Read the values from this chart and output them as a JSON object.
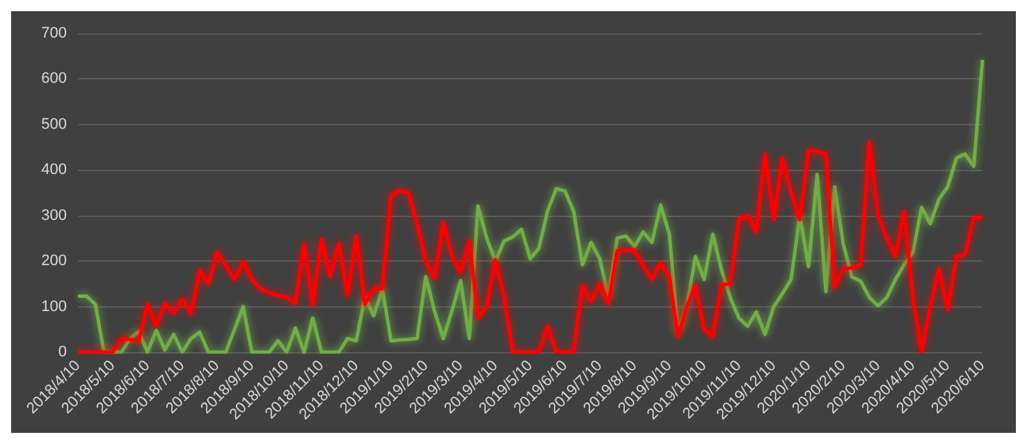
{
  "chart_data": {
    "type": "line",
    "categories": [
      "2018/4/10",
      null,
      null,
      null,
      "2018/5/10",
      null,
      null,
      null,
      "2018/6/10",
      null,
      null,
      null,
      "2018/7/10",
      null,
      null,
      null,
      "2018/8/10",
      null,
      null,
      null,
      "2018/9/10",
      null,
      null,
      null,
      "2018/10/10",
      null,
      null,
      null,
      "2018/11/10",
      null,
      null,
      null,
      "2018/12/10",
      null,
      null,
      null,
      "2019/1/10",
      null,
      null,
      null,
      "2019/2/10",
      null,
      null,
      null,
      "2019/3/10",
      null,
      null,
      null,
      "2019/4/10",
      null,
      null,
      null,
      "2019/5/10",
      null,
      null,
      null,
      "2019/6/10",
      null,
      null,
      null,
      "2019/7/10",
      null,
      null,
      null,
      "2019/8/10",
      null,
      null,
      null,
      "2019/9/10",
      null,
      null,
      null,
      "2019/10/10",
      null,
      null,
      null,
      "2019/11/10",
      null,
      null,
      null,
      "2019/12/10",
      null,
      null,
      null,
      "2020/1/10",
      null,
      null,
      null,
      "2020/2/10",
      null,
      null,
      null,
      "2020/3/10",
      null,
      null,
      null,
      "2020/4/10",
      null,
      null,
      null,
      "2020/5/10",
      null,
      null,
      null,
      "2020/6/10"
    ],
    "series": [
      {
        "color": "#70ad47",
        "values": [
          123,
          123,
          105,
          0,
          0,
          0,
          30,
          45,
          0,
          48,
          5,
          39,
          0,
          30,
          44,
          0,
          0,
          0,
          50,
          100,
          0,
          0,
          0,
          25,
          0,
          53,
          0,
          75,
          0,
          0,
          0,
          30,
          25,
          121,
          80,
          139,
          25,
          27,
          28,
          30,
          166,
          90,
          30,
          90,
          157,
          30,
          321,
          250,
          200,
          244,
          253,
          270,
          205,
          228,
          310,
          359,
          354,
          309,
          192,
          241,
          205,
          120,
          250,
          255,
          232,
          264,
          241,
          323,
          259,
          43,
          100,
          210,
          160,
          259,
          180,
          120,
          75,
          57,
          88,
          39,
          100,
          129,
          160,
          300,
          188,
          390,
          133,
          363,
          237,
          165,
          156,
          120,
          102,
          120,
          160,
          192,
          219,
          318,
          282,
          336,
          363,
          426,
          435,
          408,
          642
        ]
      },
      {
        "color": "#ff0000",
        "values": [
          0,
          0,
          0,
          0,
          0,
          30,
          28,
          25,
          105,
          57,
          107,
          86,
          116,
          85,
          180,
          150,
          219,
          190,
          160,
          198,
          160,
          139,
          130,
          125,
          121,
          107,
          237,
          103,
          248,
          166,
          239,
          125,
          255,
          105,
          139,
          139,
          344,
          355,
          350,
          280,
          200,
          162,
          285,
          212,
          174,
          244,
          75,
          100,
          203,
          121,
          0,
          0,
          0,
          0,
          57,
          0,
          0,
          0,
          147,
          111,
          151,
          106,
          223,
          223,
          223,
          190,
          160,
          196,
          165,
          34,
          100,
          147,
          50,
          34,
          147,
          151,
          291,
          300,
          264,
          435,
          291,
          426,
          350,
          291,
          444,
          440,
          435,
          142,
          183,
          185,
          192,
          462,
          300,
          250,
          210,
          309,
          120,
          0,
          100,
          183,
          93,
          210,
          214,
          295,
          295
        ]
      }
    ],
    "ylim": [
      0,
      700
    ],
    "yticks": [
      0,
      100,
      200,
      300,
      400,
      500,
      600,
      700
    ],
    "grid": "y",
    "marker": "none",
    "line_style": "solid"
  }
}
